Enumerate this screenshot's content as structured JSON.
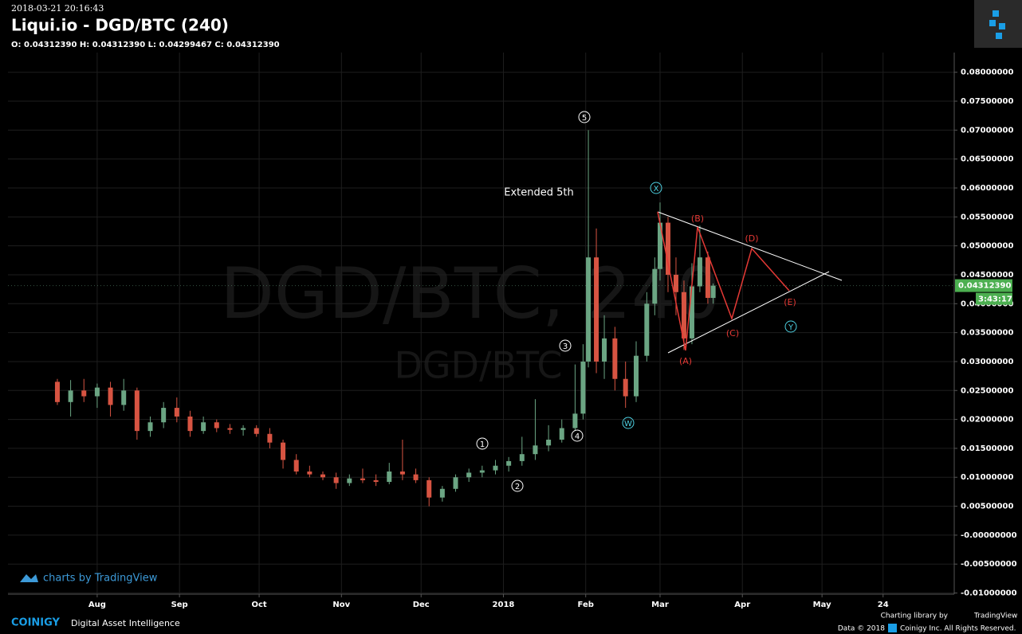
{
  "header": {
    "timestamp": "2018-03-21 20:16:43",
    "title": "Liqui.io - DGD/BTC (240)",
    "ohlc": "O: 0.04312390 H: 0.04312390 L: 0.04299467 C: 0.04312390"
  },
  "chart_data": {
    "type": "candlestick",
    "x": [
      16,
      21,
      26,
      31,
      36,
      41,
      46,
      51,
      56,
      61,
      66,
      71,
      76,
      81,
      86,
      91,
      96,
      101,
      106,
      111,
      116,
      121,
      126,
      131,
      136,
      141,
      146,
      151,
      156,
      161,
      166,
      171,
      176,
      181,
      186,
      191,
      196,
      201,
      206,
      211,
      214,
      216,
      219,
      222,
      226,
      230,
      234,
      238,
      241,
      243,
      246,
      249,
      252,
      255,
      258,
      261,
      263
    ],
    "open": [
      0.0265,
      0.023,
      0.025,
      0.024,
      0.0255,
      0.0225,
      0.025,
      0.018,
      0.0195,
      0.022,
      0.0205,
      0.018,
      0.0195,
      0.0185,
      0.0182,
      0.0185,
      0.0175,
      0.016,
      0.013,
      0.011,
      0.0105,
      0.01,
      0.009,
      0.0098,
      0.0095,
      0.0092,
      0.011,
      0.0105,
      0.0095,
      0.0065,
      0.008,
      0.01,
      0.0108,
      0.0112,
      0.012,
      0.0128,
      0.014,
      0.0155,
      0.0165,
      0.0185,
      0.021,
      0.03,
      0.048,
      0.03,
      0.034,
      0.027,
      0.024,
      0.031,
      0.04,
      0.046,
      0.054,
      0.045,
      0.042,
      0.034,
      0.043,
      0.048,
      0.041
    ],
    "high": [
      0.027,
      0.0268,
      0.027,
      0.0262,
      0.0265,
      0.027,
      0.0255,
      0.0205,
      0.023,
      0.0238,
      0.0215,
      0.0205,
      0.02,
      0.0192,
      0.019,
      0.019,
      0.0185,
      0.0165,
      0.014,
      0.012,
      0.011,
      0.0108,
      0.0105,
      0.0115,
      0.0105,
      0.0125,
      0.0165,
      0.0115,
      0.01,
      0.0085,
      0.0105,
      0.0115,
      0.012,
      0.013,
      0.0135,
      0.017,
      0.0235,
      0.019,
      0.02,
      0.0295,
      0.033,
      0.07,
      0.053,
      0.038,
      0.036,
      0.03,
      0.0335,
      0.042,
      0.048,
      0.0575,
      0.055,
      0.048,
      0.044,
      0.047,
      0.0535,
      0.049,
      0.0435
    ],
    "low": [
      0.0225,
      0.0205,
      0.023,
      0.022,
      0.0205,
      0.0215,
      0.0165,
      0.017,
      0.0185,
      0.0195,
      0.017,
      0.0175,
      0.0178,
      0.0175,
      0.0172,
      0.017,
      0.015,
      0.0115,
      0.0105,
      0.01,
      0.0095,
      0.008,
      0.0085,
      0.009,
      0.0085,
      0.0088,
      0.0095,
      0.009,
      0.005,
      0.0058,
      0.0075,
      0.0092,
      0.01,
      0.0105,
      0.011,
      0.012,
      0.013,
      0.0145,
      0.016,
      0.018,
      0.02,
      0.029,
      0.028,
      0.027,
      0.025,
      0.022,
      0.023,
      0.03,
      0.038,
      0.044,
      0.042,
      0.038,
      0.032,
      0.033,
      0.042,
      0.04,
      0.04
    ],
    "close": [
      0.023,
      0.025,
      0.024,
      0.0255,
      0.0225,
      0.025,
      0.018,
      0.0195,
      0.022,
      0.0205,
      0.018,
      0.0195,
      0.0185,
      0.0182,
      0.0185,
      0.0175,
      0.016,
      0.013,
      0.011,
      0.0105,
      0.01,
      0.009,
      0.0098,
      0.0095,
      0.0092,
      0.011,
      0.0105,
      0.0095,
      0.0065,
      0.008,
      0.01,
      0.0108,
      0.0112,
      0.012,
      0.0128,
      0.014,
      0.0155,
      0.0165,
      0.0185,
      0.021,
      0.03,
      0.048,
      0.03,
      0.034,
      0.027,
      0.024,
      0.031,
      0.04,
      0.046,
      0.054,
      0.045,
      0.042,
      0.034,
      0.043,
      0.048,
      0.041,
      0.0431239
    ],
    "up_color": "#6ba583",
    "down_color": "#d75442",
    "xlim": [
      -2.6,
      353.8
    ],
    "xticks": [
      {
        "value": 31,
        "label": "Aug"
      },
      {
        "value": 62,
        "label": "Sep"
      },
      {
        "value": 92,
        "label": "Oct"
      },
      {
        "value": 123,
        "label": "Nov"
      },
      {
        "value": 153,
        "label": "Dec"
      },
      {
        "value": 184,
        "label": "2018"
      },
      {
        "value": 215,
        "label": "Feb"
      },
      {
        "value": 243,
        "label": "Mar"
      },
      {
        "value": 274,
        "label": "Apr"
      },
      {
        "value": 304,
        "label": "May"
      },
      {
        "value": 327,
        "label": "24"
      }
    ],
    "ylim": [
      -0.0102,
      0.0834
    ],
    "yticks": [
      {
        "value": 0.08,
        "label": "0.08000000"
      },
      {
        "value": 0.075,
        "label": "0.07500000"
      },
      {
        "value": 0.07,
        "label": "0.07000000"
      },
      {
        "value": 0.065,
        "label": "0.06500000"
      },
      {
        "value": 0.06,
        "label": "0.06000000"
      },
      {
        "value": 0.055,
        "label": "0.05500000"
      },
      {
        "value": 0.05,
        "label": "0.05000000"
      },
      {
        "value": 0.045,
        "label": "0.04500000"
      },
      {
        "value": 0.04,
        "label": "0.04000000"
      },
      {
        "value": 0.035,
        "label": "0.03500000"
      },
      {
        "value": 0.03,
        "label": "0.03000000"
      },
      {
        "value": 0.025,
        "label": "0.02500000"
      },
      {
        "value": 0.02,
        "label": "0.02000000"
      },
      {
        "value": 0.015,
        "label": "0.01500000"
      },
      {
        "value": 0.01,
        "label": "0.01000000"
      },
      {
        "value": 0.005,
        "label": "0.00500000"
      },
      {
        "value": 0,
        "label": "-0.00000000"
      },
      {
        "value": -0.005,
        "label": "-0.00500000"
      },
      {
        "value": -0.01,
        "label": "-0.01000000"
      }
    ],
    "grid": true,
    "last_price": {
      "value": 0.0431239,
      "label": "0.04312390"
    },
    "countdown": "3:43:17",
    "watermark": "DGD/BTC, 240",
    "watermark_sub": "DGD/BTC",
    "annotations": [
      "5",
      "3",
      "4",
      "1",
      "2",
      "X",
      "W",
      "Y",
      "(A)",
      "(B)",
      "(C)",
      "(D)",
      "(E)",
      "Extended 5th"
    ]
  },
  "footer": {
    "tv": "charts by TradingView",
    "brand": "COINIGY",
    "tagline": "Digital Asset Intelligence",
    "lib": "Charting library by",
    "lib_name": "TradingView",
    "data": "Data © 2018",
    "rights": "Coinigy Inc. All Rights Reserved."
  }
}
